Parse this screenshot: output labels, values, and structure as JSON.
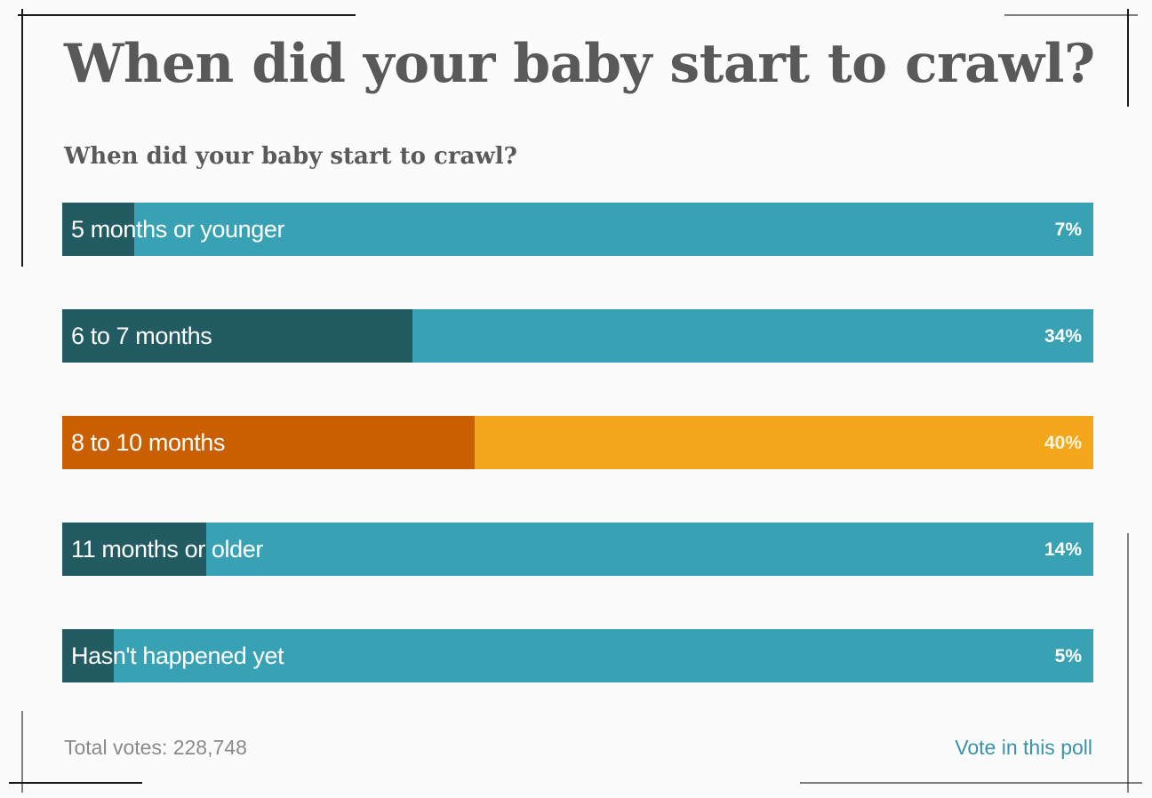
{
  "page": {
    "title": "When did your baby start to crawl?",
    "question": "When did your baby start to crawl?",
    "total_votes_label": "Total votes: 228,748",
    "vote_link_label": "Vote in this poll"
  },
  "colors": {
    "bar_bg": "#38a2b4",
    "bar_fill": "#225b61",
    "highlight_bg": "#f4a71c",
    "highlight_fill": "#ca5f02"
  },
  "chart_data": {
    "type": "bar",
    "orientation": "horizontal",
    "title": "When did your baby start to crawl?",
    "categories": [
      "5 months or younger",
      "6 to 7 months",
      "8 to 10 months",
      "11 months or older",
      "Hasn't happened yet"
    ],
    "values": [
      7,
      34,
      40,
      14,
      5
    ],
    "value_labels": [
      "7%",
      "34%",
      "40%",
      "14%",
      "5%"
    ],
    "unit": "%",
    "xlim": [
      0,
      100
    ],
    "highlight_index": 2,
    "total_votes": 228748
  }
}
